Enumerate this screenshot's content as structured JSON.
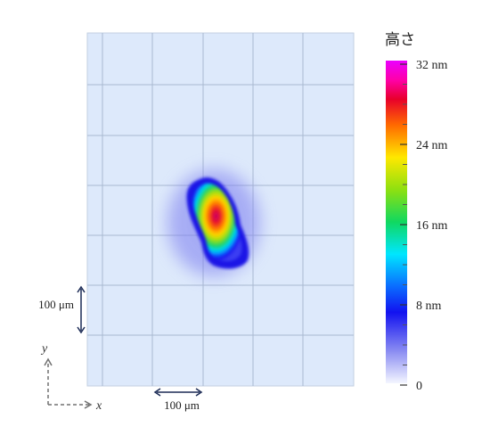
{
  "chart_data": {
    "type": "heatmap",
    "title": "",
    "colorbar": {
      "label": "高さ",
      "range": [
        0,
        32
      ],
      "ticks": [
        {
          "value": 32,
          "label": "32 nm"
        },
        {
          "value": 24,
          "label": "24 nm"
        },
        {
          "value": 16,
          "label": "16 nm"
        },
        {
          "value": 8,
          "label": "8 nm"
        },
        {
          "value": 0,
          "label": "0"
        }
      ]
    },
    "grid": true,
    "axes": {
      "x_label": "x",
      "y_label": "y"
    },
    "scale_bars": {
      "horizontal": {
        "label": "100 μm"
      },
      "vertical": {
        "label": "100 μm"
      }
    },
    "peak_height_nm": 32,
    "colors": {
      "background": "#dde9fb",
      "grid": "#a9b9d0",
      "scale_bar": "#1b2a55",
      "axis_arrow": "#707070"
    }
  }
}
